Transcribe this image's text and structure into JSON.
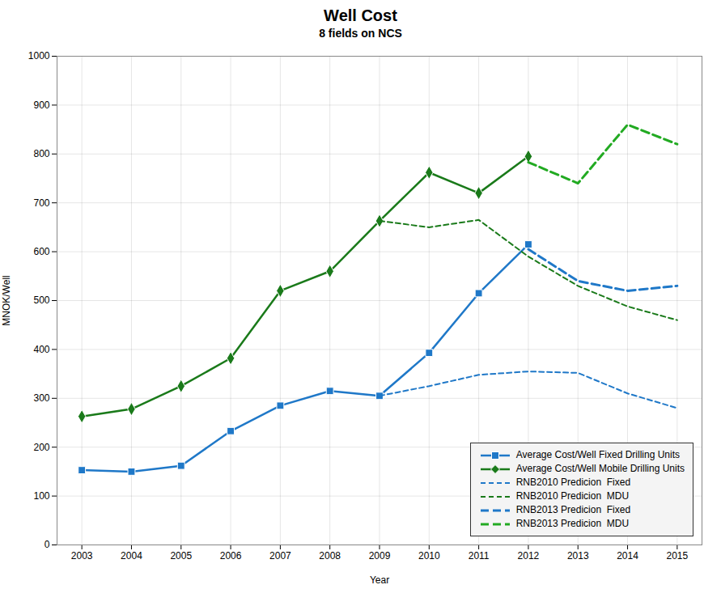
{
  "chart_data": {
    "type": "line",
    "title": "Well Cost",
    "subtitle": "8 fields on NCS",
    "xlabel": "Year",
    "ylabel": "MNOK/Well",
    "xlim": [
      2002.5,
      2015.5
    ],
    "xticks": [
      2003,
      2004,
      2005,
      2006,
      2007,
      2008,
      2009,
      2010,
      2011,
      2012,
      2013,
      2014,
      2015
    ],
    "ylim": [
      0,
      1000
    ],
    "yticks": [
      0,
      100,
      200,
      300,
      400,
      500,
      600,
      700,
      800,
      900,
      1000
    ],
    "grid": true,
    "legend": "lower right",
    "series": [
      {
        "name": "Average Cost/Well Fixed Drilling Units",
        "color": "#1F78C8",
        "marker": "square",
        "line_style": "solid",
        "x": [
          2003,
          2004,
          2005,
          2006,
          2007,
          2008,
          2009,
          2010,
          2011,
          2012
        ],
        "values": [
          153,
          150,
          162,
          233,
          285,
          315,
          305,
          393,
          515,
          615
        ]
      },
      {
        "name": "Average Cost/Well Mobile Drilling Units",
        "color": "#1A7A1A",
        "marker": "diamond",
        "line_style": "solid",
        "x": [
          2003,
          2004,
          2005,
          2006,
          2007,
          2008,
          2009,
          2010,
          2011,
          2012
        ],
        "values": [
          263,
          278,
          325,
          382,
          520,
          560,
          663,
          762,
          720,
          795
        ]
      },
      {
        "name": "RNB2010 Predicion  Fixed",
        "color": "#1F78C8",
        "line_style": "dashed",
        "x": [
          2009,
          2010,
          2011,
          2012,
          2013,
          2014,
          2015
        ],
        "values": [
          305,
          325,
          348,
          355,
          352,
          310,
          280
        ]
      },
      {
        "name": "RNB2010 Predicion  MDU",
        "color": "#1A7A1A",
        "line_style": "dashed",
        "x": [
          2009,
          2010,
          2011,
          2012,
          2013,
          2014,
          2015
        ],
        "values": [
          663,
          650,
          665,
          590,
          530,
          488,
          460
        ]
      },
      {
        "name": "RNB2013 Predicion  Fixed",
        "color": "#1F78C8",
        "line_style": "longdash",
        "x": [
          2012,
          2013,
          2014,
          2015
        ],
        "values": [
          605,
          540,
          520,
          530
        ]
      },
      {
        "name": "RNB2013 Predicion  MDU",
        "color": "#22AA22",
        "line_style": "longdash",
        "x": [
          2012,
          2013,
          2014,
          2015
        ],
        "values": [
          783,
          740,
          860,
          820
        ]
      }
    ]
  }
}
